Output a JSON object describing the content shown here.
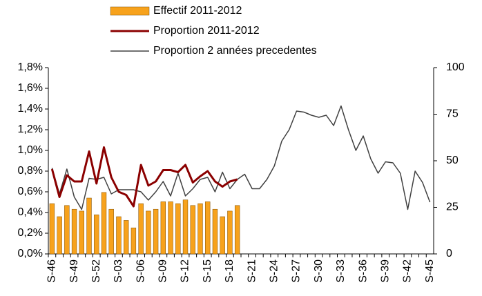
{
  "chart_data": {
    "type": "bar-line",
    "categories": [
      "S-46",
      null,
      null,
      "S-49",
      null,
      null,
      "S-52",
      null,
      null,
      "S-03",
      null,
      null,
      "S-06",
      null,
      null,
      "S-09",
      null,
      null,
      "S-12",
      null,
      null,
      "S-15",
      null,
      null,
      "S-18",
      null,
      null,
      "S-21",
      null,
      null,
      "S-24",
      null,
      null,
      "S-27",
      null,
      null,
      "S-30",
      null,
      null,
      "S-33",
      null,
      null,
      "S-36",
      null,
      null,
      "S-39",
      null,
      null,
      "S-42",
      null,
      null,
      "S-45"
    ],
    "series": [
      {
        "name": "Effectif 2011-2012",
        "kind": "bar",
        "axis": "y2",
        "color": "#f7a21c",
        "values": [
          27,
          20,
          26,
          24,
          23,
          30,
          21,
          33,
          24,
          20,
          18,
          14,
          27,
          23,
          24,
          28,
          28,
          27,
          29,
          26,
          27,
          28,
          24,
          20,
          23,
          26,
          null,
          null,
          null,
          null,
          null,
          null,
          null,
          null,
          null,
          null,
          null,
          null,
          null,
          null,
          null,
          null,
          null,
          null,
          null,
          null,
          null,
          null,
          null,
          null,
          null,
          null
        ]
      },
      {
        "name": "Proportion 2011-2012",
        "kind": "line",
        "axis": "y",
        "color": "#8b0000",
        "values": [
          0.82,
          0.55,
          0.76,
          0.7,
          0.7,
          0.99,
          0.68,
          1.03,
          0.74,
          0.6,
          0.57,
          0.46,
          0.86,
          0.66,
          0.7,
          0.81,
          0.81,
          0.79,
          0.86,
          0.69,
          0.75,
          0.8,
          0.7,
          0.65,
          0.7,
          0.72,
          null,
          null,
          null,
          null,
          null,
          null,
          null,
          null,
          null,
          null,
          null,
          null,
          null,
          null,
          null,
          null,
          null,
          null,
          null,
          null,
          null,
          null,
          null,
          null,
          null,
          null
        ]
      },
      {
        "name": "Proportion 2 années precedentes",
        "kind": "line",
        "axis": "y",
        "color": "#404040",
        "values": [
          0.83,
          0.58,
          0.82,
          0.55,
          0.43,
          0.73,
          0.72,
          0.74,
          0.58,
          0.62,
          0.62,
          0.62,
          0.6,
          0.52,
          0.6,
          0.7,
          0.56,
          0.78,
          0.56,
          0.63,
          0.72,
          0.74,
          0.6,
          0.79,
          0.63,
          0.72,
          0.77,
          0.63,
          0.63,
          0.72,
          0.85,
          1.09,
          1.2,
          1.38,
          1.37,
          1.34,
          1.32,
          1.34,
          1.24,
          1.43,
          1.2,
          1.0,
          1.14,
          0.92,
          0.78,
          0.89,
          0.88,
          0.78,
          0.43,
          0.8,
          0.69,
          0.5
        ]
      }
    ],
    "ylim": [
      0,
      1.8
    ],
    "yticks": [
      {
        "value": 0,
        "label": "0,0%"
      },
      {
        "value": 0.2,
        "label": "0,2%"
      },
      {
        "value": 0.4,
        "label": "0,4%"
      },
      {
        "value": 0.6,
        "label": "0,6%"
      },
      {
        "value": 0.8,
        "label": "0,8%"
      },
      {
        "value": 1.0,
        "label": "1,0%"
      },
      {
        "value": 1.2,
        "label": "1,2%"
      },
      {
        "value": 1.4,
        "label": "1,4%"
      },
      {
        "value": 1.6,
        "label": "1,6%"
      },
      {
        "value": 1.8,
        "label": "1,8%"
      }
    ],
    "y2lim": [
      0,
      100
    ],
    "y2ticks": [
      0,
      25,
      50,
      75,
      100
    ],
    "grid": false,
    "legend": "top"
  }
}
